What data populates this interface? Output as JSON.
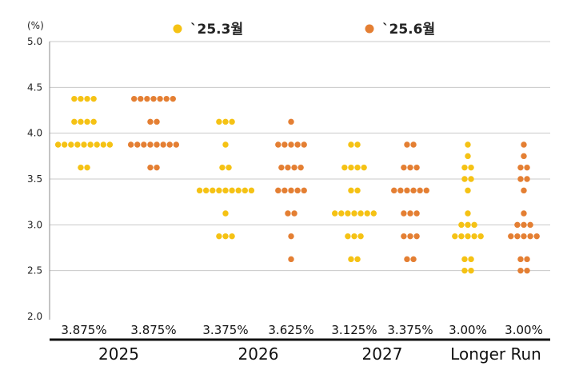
{
  "chart_data": {
    "type": "scatter",
    "ylabel": "(%)",
    "ylim": [
      2.0,
      5.0
    ],
    "yticks": [
      "5.0",
      "4.5",
      "4.0",
      "3.5",
      "3.0",
      "2.5",
      "2.0"
    ],
    "grid": true,
    "legend_placement": "top",
    "series": [
      {
        "name": "`25.3월",
        "color": "#F5C214"
      },
      {
        "name": "`25.6월",
        "color": "#E47F33"
      }
    ],
    "groups": [
      {
        "label": "2025",
        "columns": [
          {
            "series": 0,
            "median_label": "3.875%",
            "dots": [
              {
                "value": 4.375,
                "count": 4
              },
              {
                "value": 4.125,
                "count": 4
              },
              {
                "value": 3.875,
                "count": 9
              },
              {
                "value": 3.625,
                "count": 2
              }
            ]
          },
          {
            "series": 1,
            "median_label": "3.875%",
            "dots": [
              {
                "value": 4.375,
                "count": 7
              },
              {
                "value": 4.125,
                "count": 2
              },
              {
                "value": 3.875,
                "count": 8
              },
              {
                "value": 3.625,
                "count": 2
              }
            ]
          }
        ]
      },
      {
        "label": "2026",
        "columns": [
          {
            "series": 0,
            "median_label": "3.375%",
            "dots": [
              {
                "value": 4.125,
                "count": 3
              },
              {
                "value": 3.875,
                "count": 1
              },
              {
                "value": 3.625,
                "count": 2
              },
              {
                "value": 3.375,
                "count": 9
              },
              {
                "value": 3.125,
                "count": 1
              },
              {
                "value": 2.875,
                "count": 3
              }
            ]
          },
          {
            "series": 1,
            "median_label": "3.625%",
            "dots": [
              {
                "value": 4.125,
                "count": 1
              },
              {
                "value": 3.875,
                "count": 5
              },
              {
                "value": 3.625,
                "count": 4
              },
              {
                "value": 3.375,
                "count": 5
              },
              {
                "value": 3.125,
                "count": 2
              },
              {
                "value": 2.875,
                "count": 1
              },
              {
                "value": 2.625,
                "count": 1
              }
            ]
          }
        ]
      },
      {
        "label": "2027",
        "columns": [
          {
            "series": 0,
            "median_label": "3.125%",
            "dots": [
              {
                "value": 3.875,
                "count": 2
              },
              {
                "value": 3.625,
                "count": 4
              },
              {
                "value": 3.375,
                "count": 2
              },
              {
                "value": 3.125,
                "count": 7
              },
              {
                "value": 2.875,
                "count": 3
              },
              {
                "value": 2.625,
                "count": 2
              }
            ]
          },
          {
            "series": 1,
            "median_label": "3.375%",
            "dots": [
              {
                "value": 3.875,
                "count": 2
              },
              {
                "value": 3.625,
                "count": 3
              },
              {
                "value": 3.375,
                "count": 6
              },
              {
                "value": 3.125,
                "count": 3
              },
              {
                "value": 2.875,
                "count": 3
              },
              {
                "value": 2.625,
                "count": 2
              }
            ]
          }
        ]
      },
      {
        "label": "Longer Run",
        "columns": [
          {
            "series": 0,
            "median_label": "3.00%",
            "dots": [
              {
                "value": 3.875,
                "count": 1
              },
              {
                "value": 3.75,
                "count": 1
              },
              {
                "value": 3.625,
                "count": 2
              },
              {
                "value": 3.5,
                "count": 2
              },
              {
                "value": 3.375,
                "count": 1
              },
              {
                "value": 3.125,
                "count": 1
              },
              {
                "value": 3.0,
                "count": 3
              },
              {
                "value": 2.875,
                "count": 5
              },
              {
                "value": 2.625,
                "count": 2
              },
              {
                "value": 2.5,
                "count": 2
              }
            ]
          },
          {
            "series": 1,
            "median_label": "3.00%",
            "dots": [
              {
                "value": 3.875,
                "count": 1
              },
              {
                "value": 3.75,
                "count": 1
              },
              {
                "value": 3.625,
                "count": 2
              },
              {
                "value": 3.5,
                "count": 2
              },
              {
                "value": 3.375,
                "count": 1
              },
              {
                "value": 3.125,
                "count": 1
              },
              {
                "value": 3.0,
                "count": 3
              },
              {
                "value": 2.875,
                "count": 5
              },
              {
                "value": 2.625,
                "count": 2
              },
              {
                "value": 2.5,
                "count": 2
              }
            ]
          }
        ]
      }
    ]
  }
}
